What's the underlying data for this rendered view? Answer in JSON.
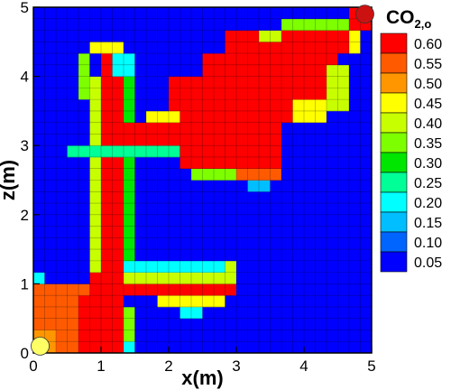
{
  "chart_data": {
    "type": "heatmap",
    "title": "",
    "xlabel": "x(m)",
    "ylabel": "z(m)",
    "xlim": [
      0,
      5
    ],
    "ylim": [
      0,
      5
    ],
    "x_ticks": [
      "0",
      "1",
      "2",
      "3",
      "4",
      "5"
    ],
    "y_ticks": [
      "0",
      "1",
      "2",
      "3",
      "4",
      "5"
    ],
    "grid": "on",
    "colorbar": {
      "title_main": "CO",
      "title_sub": "2,o",
      "levels": [
        "0.60",
        "0.55",
        "0.50",
        "0.45",
        "0.40",
        "0.35",
        "0.30",
        "0.25",
        "0.20",
        "0.15",
        "0.10",
        "0.05"
      ],
      "colors": [
        "#ff0000",
        "#ff5a00",
        "#ff9600",
        "#ffff00",
        "#c8ff00",
        "#7dff00",
        "#00e600",
        "#00ff96",
        "#00ffff",
        "#00beff",
        "#0064ff",
        "#0000ff"
      ]
    },
    "grid_cells": 30,
    "cell_size_m": 0.1667,
    "cells_note": "values per cell (col,row from lower-left), 0 = background 0.05",
    "regions": [
      {
        "kind": "rect",
        "c0": 0,
        "c1": 6,
        "r0": 0,
        "r1": 5,
        "value": 0.55
      },
      {
        "kind": "rect",
        "c0": 4,
        "c1": 7,
        "r0": 0,
        "r1": 4,
        "value": 0.6
      },
      {
        "kind": "rect",
        "c0": 0,
        "c1": 1,
        "r0": 0,
        "r1": 1,
        "value": 0.5
      },
      {
        "kind": "rect",
        "c0": 0,
        "c1": 0,
        "r0": 6,
        "r1": 6,
        "value": 0.2
      },
      {
        "kind": "rect",
        "c0": 5,
        "c1": 6,
        "r0": 5,
        "r1": 6,
        "value": 0.6
      },
      {
        "kind": "rect",
        "c0": 6,
        "c1": 7,
        "r0": 6,
        "r1": 25,
        "value": 0.6
      },
      {
        "kind": "rect",
        "c0": 5,
        "c1": 5,
        "r0": 7,
        "r1": 23,
        "value": 0.4
      },
      {
        "kind": "rect",
        "c0": 8,
        "c1": 8,
        "r0": 7,
        "r1": 23,
        "value": 0.3
      },
      {
        "kind": "rect",
        "c0": 4,
        "c1": 4,
        "r0": 22,
        "r1": 25,
        "value": 0.35
      },
      {
        "kind": "rect",
        "c0": 7,
        "c1": 8,
        "r0": 24,
        "r1": 25,
        "value": 0.2
      },
      {
        "kind": "rect",
        "c0": 5,
        "c1": 7,
        "r0": 26,
        "r1": 26,
        "value": 0.45
      },
      {
        "kind": "rect",
        "c0": 3,
        "c1": 12,
        "r0": 17,
        "r1": 17,
        "value": 0.25
      },
      {
        "kind": "rect",
        "c0": 7,
        "c1": 12,
        "r0": 18,
        "r1": 18,
        "value": 0.6
      },
      {
        "kind": "rect",
        "c0": 8,
        "c1": 16,
        "r0": 19,
        "r1": 19,
        "value": 0.6
      },
      {
        "kind": "rect",
        "c0": 12,
        "c1": 23,
        "r0": 20,
        "r1": 23,
        "value": 0.6
      },
      {
        "kind": "rect",
        "c0": 15,
        "c1": 26,
        "r0": 22,
        "r1": 25,
        "value": 0.6
      },
      {
        "kind": "rect",
        "c0": 17,
        "c1": 27,
        "r0": 26,
        "r1": 27,
        "value": 0.6
      },
      {
        "kind": "rect",
        "c0": 13,
        "c1": 21,
        "r0": 16,
        "r1": 19,
        "value": 0.6
      },
      {
        "kind": "rect",
        "c0": 18,
        "c1": 21,
        "r0": 15,
        "r1": 15,
        "value": 0.55
      },
      {
        "kind": "rect",
        "c0": 19,
        "c1": 20,
        "r0": 14,
        "r1": 14,
        "value": 0.15
      },
      {
        "kind": "rect",
        "c0": 14,
        "c1": 17,
        "r0": 15,
        "r1": 15,
        "value": 0.35
      },
      {
        "kind": "rect",
        "c0": 10,
        "c1": 12,
        "r0": 20,
        "r1": 20,
        "value": 0.45
      },
      {
        "kind": "rect",
        "c0": 23,
        "c1": 25,
        "r0": 20,
        "r1": 21,
        "value": 0.45
      },
      {
        "kind": "rect",
        "c0": 26,
        "c1": 27,
        "r0": 21,
        "r1": 24,
        "value": 0.4
      },
      {
        "kind": "rect",
        "c0": 28,
        "c1": 28,
        "r0": 26,
        "r1": 27,
        "value": 0.45
      },
      {
        "kind": "rect",
        "c0": 22,
        "c1": 27,
        "r0": 28,
        "r1": 28,
        "value": 0.35
      },
      {
        "kind": "rect",
        "c0": 28,
        "c1": 29,
        "r0": 28,
        "r1": 29,
        "value": 0.6
      },
      {
        "kind": "rect",
        "c0": 20,
        "c1": 21,
        "r0": 27,
        "r1": 27,
        "value": 0.4
      },
      {
        "kind": "rect",
        "c0": 8,
        "c1": 16,
        "r0": 6,
        "r1": 6,
        "value": 0.4
      },
      {
        "kind": "rect",
        "c0": 8,
        "c1": 17,
        "r0": 7,
        "r1": 7,
        "value": 0.2
      },
      {
        "kind": "rect",
        "c0": 6,
        "c1": 17,
        "r0": 5,
        "r1": 5,
        "value": 0.6
      },
      {
        "kind": "rect",
        "c0": 11,
        "c1": 16,
        "r0": 4,
        "r1": 4,
        "value": 0.45
      },
      {
        "kind": "rect",
        "c0": 13,
        "c1": 14,
        "r0": 3,
        "r1": 3,
        "value": 0.2
      },
      {
        "kind": "rect",
        "c0": 17,
        "c1": 17,
        "r0": 6,
        "r1": 7,
        "value": 0.4
      },
      {
        "kind": "rect",
        "c0": 8,
        "c1": 8,
        "r0": 1,
        "r1": 3,
        "value": 0.35
      },
      {
        "kind": "rect",
        "c0": 8,
        "c1": 8,
        "r0": 0,
        "r1": 0,
        "value": 0.2
      }
    ],
    "markers": [
      {
        "label": "inlet",
        "x": 0.1,
        "z": 0.1,
        "color": "#ffff66"
      },
      {
        "label": "outlet",
        "x": 4.9,
        "z": 4.9,
        "color": "#cc1111"
      }
    ]
  }
}
